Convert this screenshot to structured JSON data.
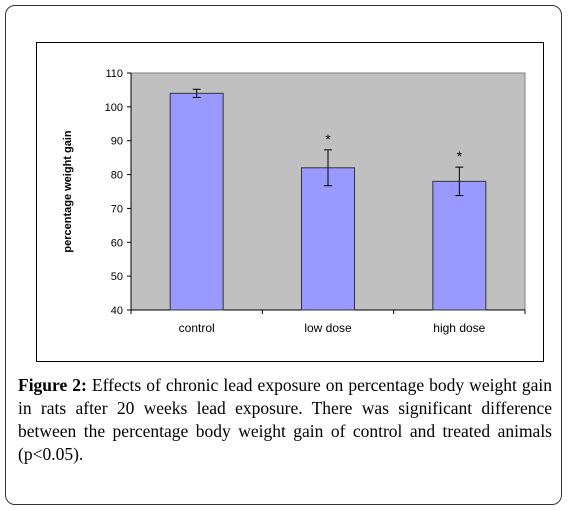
{
  "chart_data": {
    "type": "bar",
    "categories": [
      "control",
      "low dose",
      "high dose"
    ],
    "values": [
      104,
      82,
      78
    ],
    "errors": [
      1.2,
      5.3,
      4.2
    ],
    "annotations": [
      "",
      "*",
      "*"
    ],
    "ylabel": "percentage weight gain",
    "xlabel": "",
    "ylim": [
      40,
      110
    ],
    "yticks": [
      40,
      50,
      60,
      70,
      80,
      90,
      100,
      110
    ],
    "grid": false,
    "legend": "none",
    "colors": {
      "bar": "#9999ff",
      "plot_bg": "#c0c0c0",
      "bar_edge": "#333333"
    }
  },
  "caption": {
    "label": "Figure 2:",
    "text": " Effects of chronic lead exposure on percentage body weight gain in rats after 20 weeks lead exposure. There was significant difference between the percentage body weight gain of control and treated animals (p<0.05)."
  }
}
